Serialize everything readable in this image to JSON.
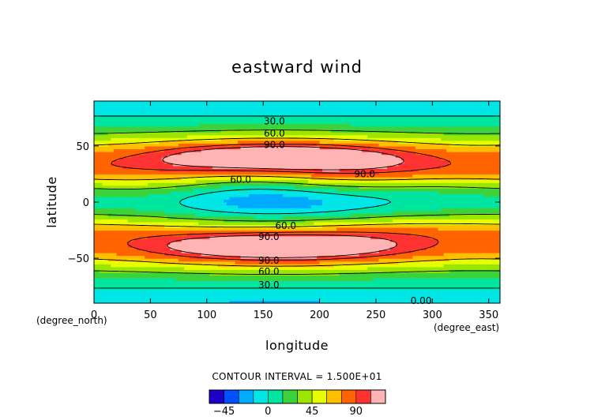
{
  "chart_data": {
    "type": "contour",
    "title": "eastward wind",
    "xlabel": "longitude",
    "ylabel": "latitude",
    "x_unit": "(degree_east)",
    "y_unit": "(degree_north)",
    "xlim": [
      0,
      360
    ],
    "ylim": [
      -90,
      90
    ],
    "x_ticks": [
      "0",
      "50",
      "100",
      "150",
      "200",
      "250",
      "300",
      "350"
    ],
    "y_ticks": [
      "50",
      "0",
      "−50"
    ],
    "contour_interval_text": "CONTOUR INTERVAL = 1.500E+01",
    "contour_labels": [
      {
        "text": "30.0",
        "lon": 160,
        "lat": 72
      },
      {
        "text": "60.0",
        "lon": 160,
        "lat": 61
      },
      {
        "text": "90.0",
        "lon": 160,
        "lat": 51
      },
      {
        "text": "60.0",
        "lon": 130,
        "lat": 20
      },
      {
        "text": "90.0",
        "lon": 240,
        "lat": 25
      },
      {
        "text": "60.0",
        "lon": 170,
        "lat": -21
      },
      {
        "text": "90.0",
        "lon": 155,
        "lat": -31
      },
      {
        "text": "90.0",
        "lon": 155,
        "lat": -52
      },
      {
        "text": "60.0",
        "lon": 155,
        "lat": -62
      },
      {
        "text": "30.0",
        "lon": 155,
        "lat": -74
      },
      {
        "text": "0.00",
        "lon": 290,
        "lat": -88
      }
    ],
    "levels": [
      -60,
      -45,
      -30,
      -15,
      0,
      15,
      30,
      45,
      60,
      75,
      90,
      105
    ],
    "colorbar_ticks": [
      "−45",
      "0",
      "45",
      "90"
    ],
    "colorbar_tick_values": [
      -45,
      0,
      45,
      90
    ],
    "colorbar_range": [
      -60,
      120
    ],
    "colormap": [
      "#8c00d8",
      "#1c00c8",
      "#0050ff",
      "#00aaff",
      "#00e6e6",
      "#00e6a0",
      "#3cd23c",
      "#9be600",
      "#e6ff00",
      "#ffbe00",
      "#ff6400",
      "#ff3232",
      "#ffb4b4",
      "#ffffff"
    ]
  }
}
